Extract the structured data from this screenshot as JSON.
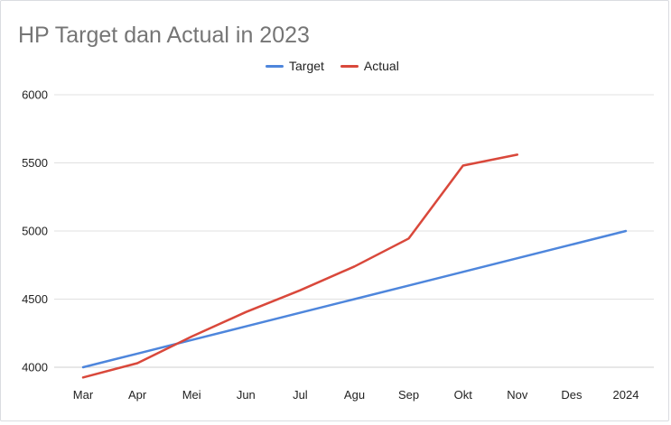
{
  "chart_data": {
    "type": "line",
    "title": "HP Target dan Actual in 2023",
    "xlabel": "",
    "ylabel": "",
    "categories": [
      "Mar",
      "Apr",
      "Mei",
      "Jun",
      "Jul",
      "Agu",
      "Sep",
      "Okt",
      "Nov",
      "Des",
      "2024"
    ],
    "series": [
      {
        "name": "Target",
        "color": "#4e86dc",
        "values": [
          4000,
          4100,
          4200,
          4300,
          4400,
          4500,
          4600,
          4700,
          4800,
          4900,
          5000
        ]
      },
      {
        "name": "Actual",
        "color": "#d9483b",
        "values": [
          3925,
          4030,
          4225,
          4405,
          4565,
          4740,
          4945,
          5480,
          5560,
          null,
          null
        ]
      }
    ],
    "ylim": [
      4000,
      6000
    ],
    "yticks": [
      4000,
      4500,
      5000,
      5500,
      6000
    ],
    "grid": true,
    "legend_position": "top"
  }
}
